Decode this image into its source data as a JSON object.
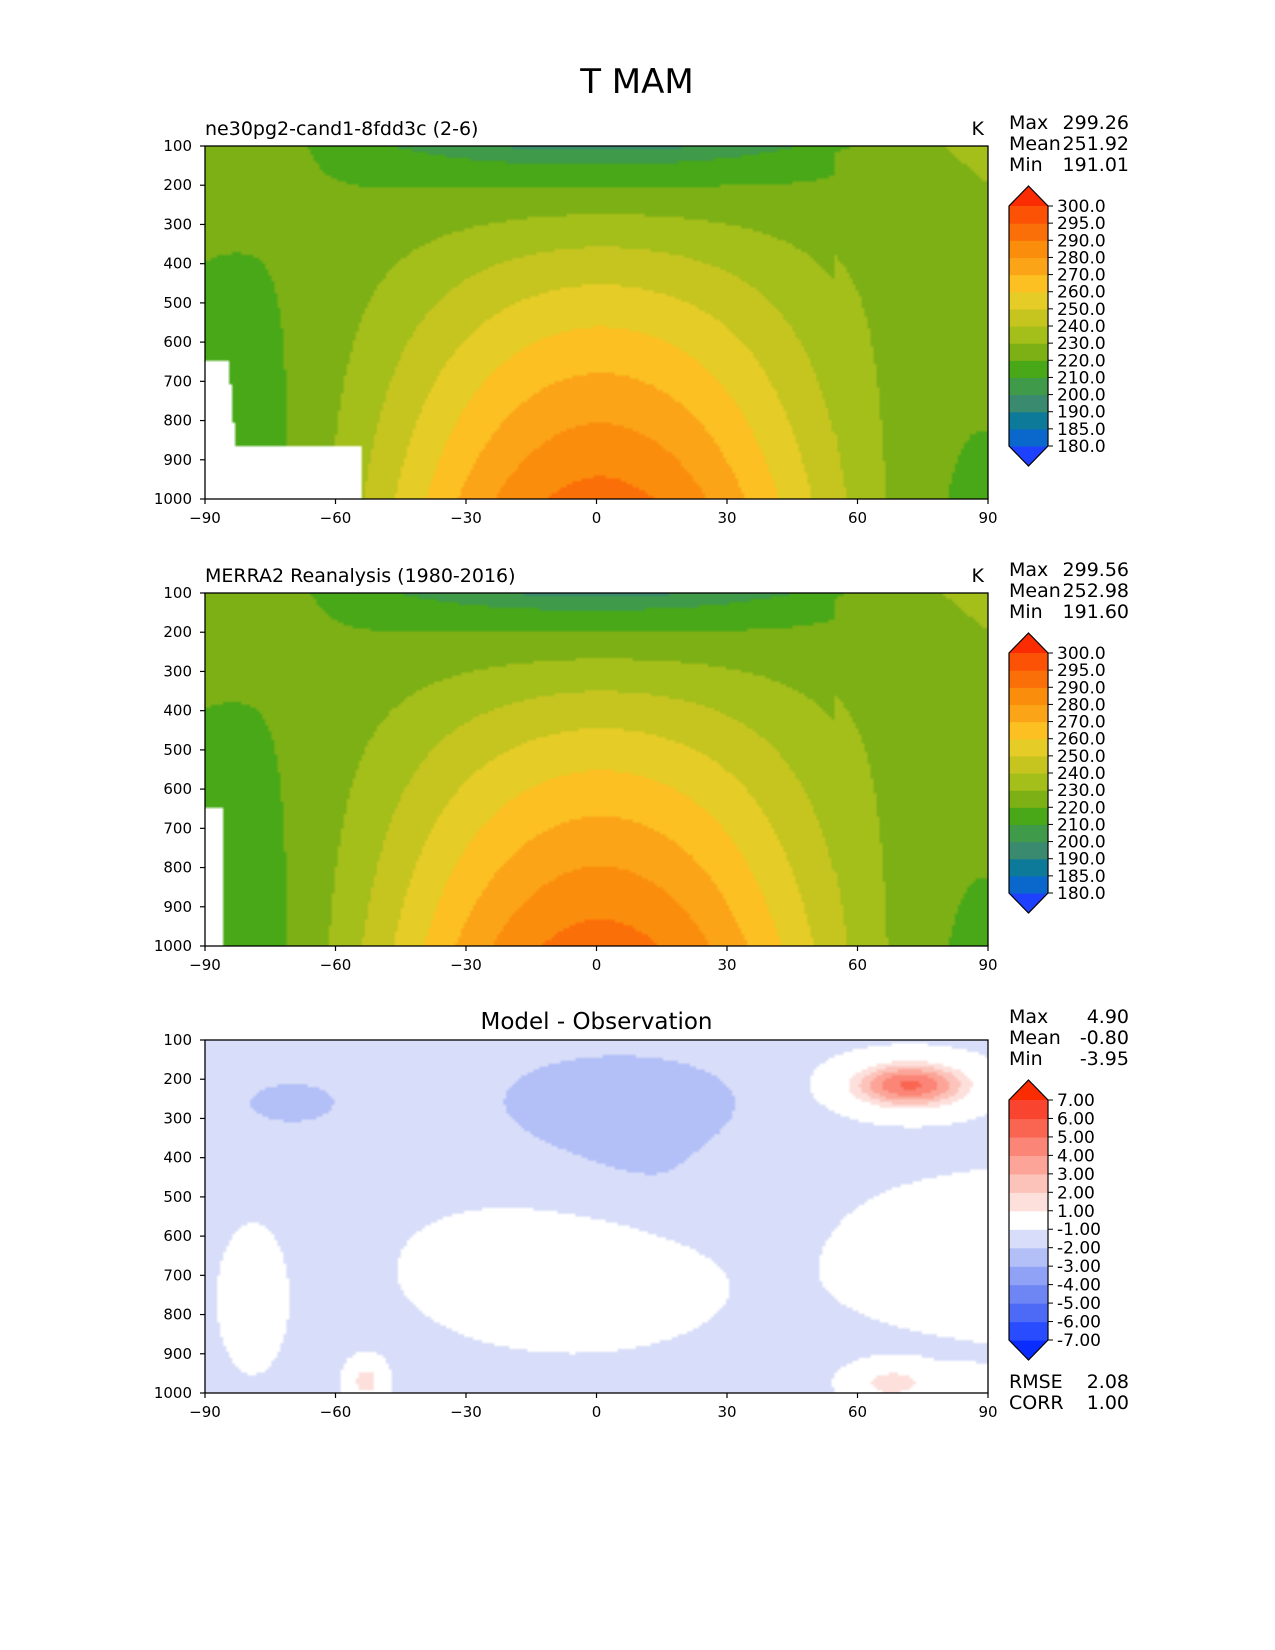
{
  "suptitle": "T MAM",
  "chart_data": [
    {
      "type": "heatmap",
      "title_left": "ne30pg2-cand1-8fdd3c (2-6)",
      "title_center": "",
      "units": "K",
      "xlim": [
        -90,
        90
      ],
      "ylim": [
        1000,
        100
      ],
      "xticks": [
        -90,
        -60,
        -30,
        0,
        30,
        60,
        90
      ],
      "xtick_labels": [
        "−90",
        "−60",
        "−30",
        "0",
        "30",
        "60",
        "90"
      ],
      "yticks": [
        100,
        200,
        300,
        400,
        500,
        600,
        700,
        800,
        900,
        1000
      ],
      "ytick_labels": [
        "100",
        "200",
        "300",
        "400",
        "500",
        "600",
        "700",
        "800",
        "900",
        "1000"
      ],
      "stats": [
        {
          "label": "Max",
          "value": "299.26"
        },
        {
          "label": "Mean",
          "value": "251.92"
        },
        {
          "label": "Min",
          "value": "191.01"
        }
      ],
      "levels": [
        "180.0",
        "185.0",
        "190.0",
        "200.0",
        "210.0",
        "220.0",
        "230.0",
        "240.0",
        "250.0",
        "260.0",
        "270.0",
        "280.0",
        "290.0",
        "295.0",
        "300.0"
      ],
      "colors": [
        "#1e40ff",
        "#0a68cc",
        "#0d7a99",
        "#3a8a70",
        "#3f9a4a",
        "#48a818",
        "#7cb015",
        "#a4be1a",
        "#c6c520",
        "#e6cc26",
        "#fcc022",
        "#fba418",
        "#fb8d0c",
        "#fb6f08",
        "#fb5205",
        "#fc2c02"
      ],
      "field": "model",
      "missing": "topography"
    },
    {
      "type": "heatmap",
      "title_left": "MERRA2 Reanalysis (1980-2016)",
      "title_center": "",
      "units": "K",
      "xlim": [
        -90,
        90
      ],
      "ylim": [
        1000,
        100
      ],
      "xticks": [
        -90,
        -60,
        -30,
        0,
        30,
        60,
        90
      ],
      "xtick_labels": [
        "−90",
        "−60",
        "−30",
        "0",
        "30",
        "60",
        "90"
      ],
      "yticks": [
        100,
        200,
        300,
        400,
        500,
        600,
        700,
        800,
        900,
        1000
      ],
      "ytick_labels": [
        "100",
        "200",
        "300",
        "400",
        "500",
        "600",
        "700",
        "800",
        "900",
        "1000"
      ],
      "stats": [
        {
          "label": "Max",
          "value": "299.56"
        },
        {
          "label": "Mean",
          "value": "252.98"
        },
        {
          "label": "Min",
          "value": "191.60"
        }
      ],
      "levels": [
        "180.0",
        "185.0",
        "190.0",
        "200.0",
        "210.0",
        "220.0",
        "230.0",
        "240.0",
        "250.0",
        "260.0",
        "270.0",
        "280.0",
        "290.0",
        "295.0",
        "300.0"
      ],
      "colors": [
        "#1e40ff",
        "#0a68cc",
        "#0d7a99",
        "#3a8a70",
        "#3f9a4a",
        "#48a818",
        "#7cb015",
        "#a4be1a",
        "#c6c520",
        "#e6cc26",
        "#fcc022",
        "#fba418",
        "#fb8d0c",
        "#fb6f08",
        "#fb5205",
        "#fc2c02"
      ],
      "field": "obs",
      "missing": "topography"
    },
    {
      "type": "heatmap",
      "title_left": "",
      "title_center": "Model - Observation",
      "units": "",
      "xlim": [
        -90,
        90
      ],
      "ylim": [
        1000,
        100
      ],
      "xticks": [
        -90,
        -60,
        -30,
        0,
        30,
        60,
        90
      ],
      "xtick_labels": [
        "−90",
        "−60",
        "−30",
        "0",
        "30",
        "60",
        "90"
      ],
      "yticks": [
        100,
        200,
        300,
        400,
        500,
        600,
        700,
        800,
        900,
        1000
      ],
      "ytick_labels": [
        "100",
        "200",
        "300",
        "400",
        "500",
        "600",
        "700",
        "800",
        "900",
        "1000"
      ],
      "stats": [
        {
          "label": "Max",
          "value": "4.90"
        },
        {
          "label": "Mean",
          "value": "-0.80"
        },
        {
          "label": "Min",
          "value": "-3.95"
        }
      ],
      "extra_stats": [
        {
          "label": "RMSE",
          "value": "2.08"
        },
        {
          "label": "CORR",
          "value": "1.00"
        }
      ],
      "levels": [
        "-7.00",
        "-6.00",
        "-5.00",
        "-4.00",
        "-3.00",
        "-2.00",
        "-1.00",
        "1.00",
        "2.00",
        "3.00",
        "4.00",
        "5.00",
        "6.00",
        "7.00"
      ],
      "colors": [
        "#0a2cff",
        "#2a4cff",
        "#4d6af7",
        "#6d86f4",
        "#8fa2f6",
        "#b3c0f8",
        "#d8def9",
        "#ffffff",
        "#fde0dc",
        "#fcc3ba",
        "#fba497",
        "#fb8576",
        "#fa6552",
        "#f9442f",
        "#fc2c02"
      ],
      "field": "diff",
      "missing": "none"
    }
  ]
}
